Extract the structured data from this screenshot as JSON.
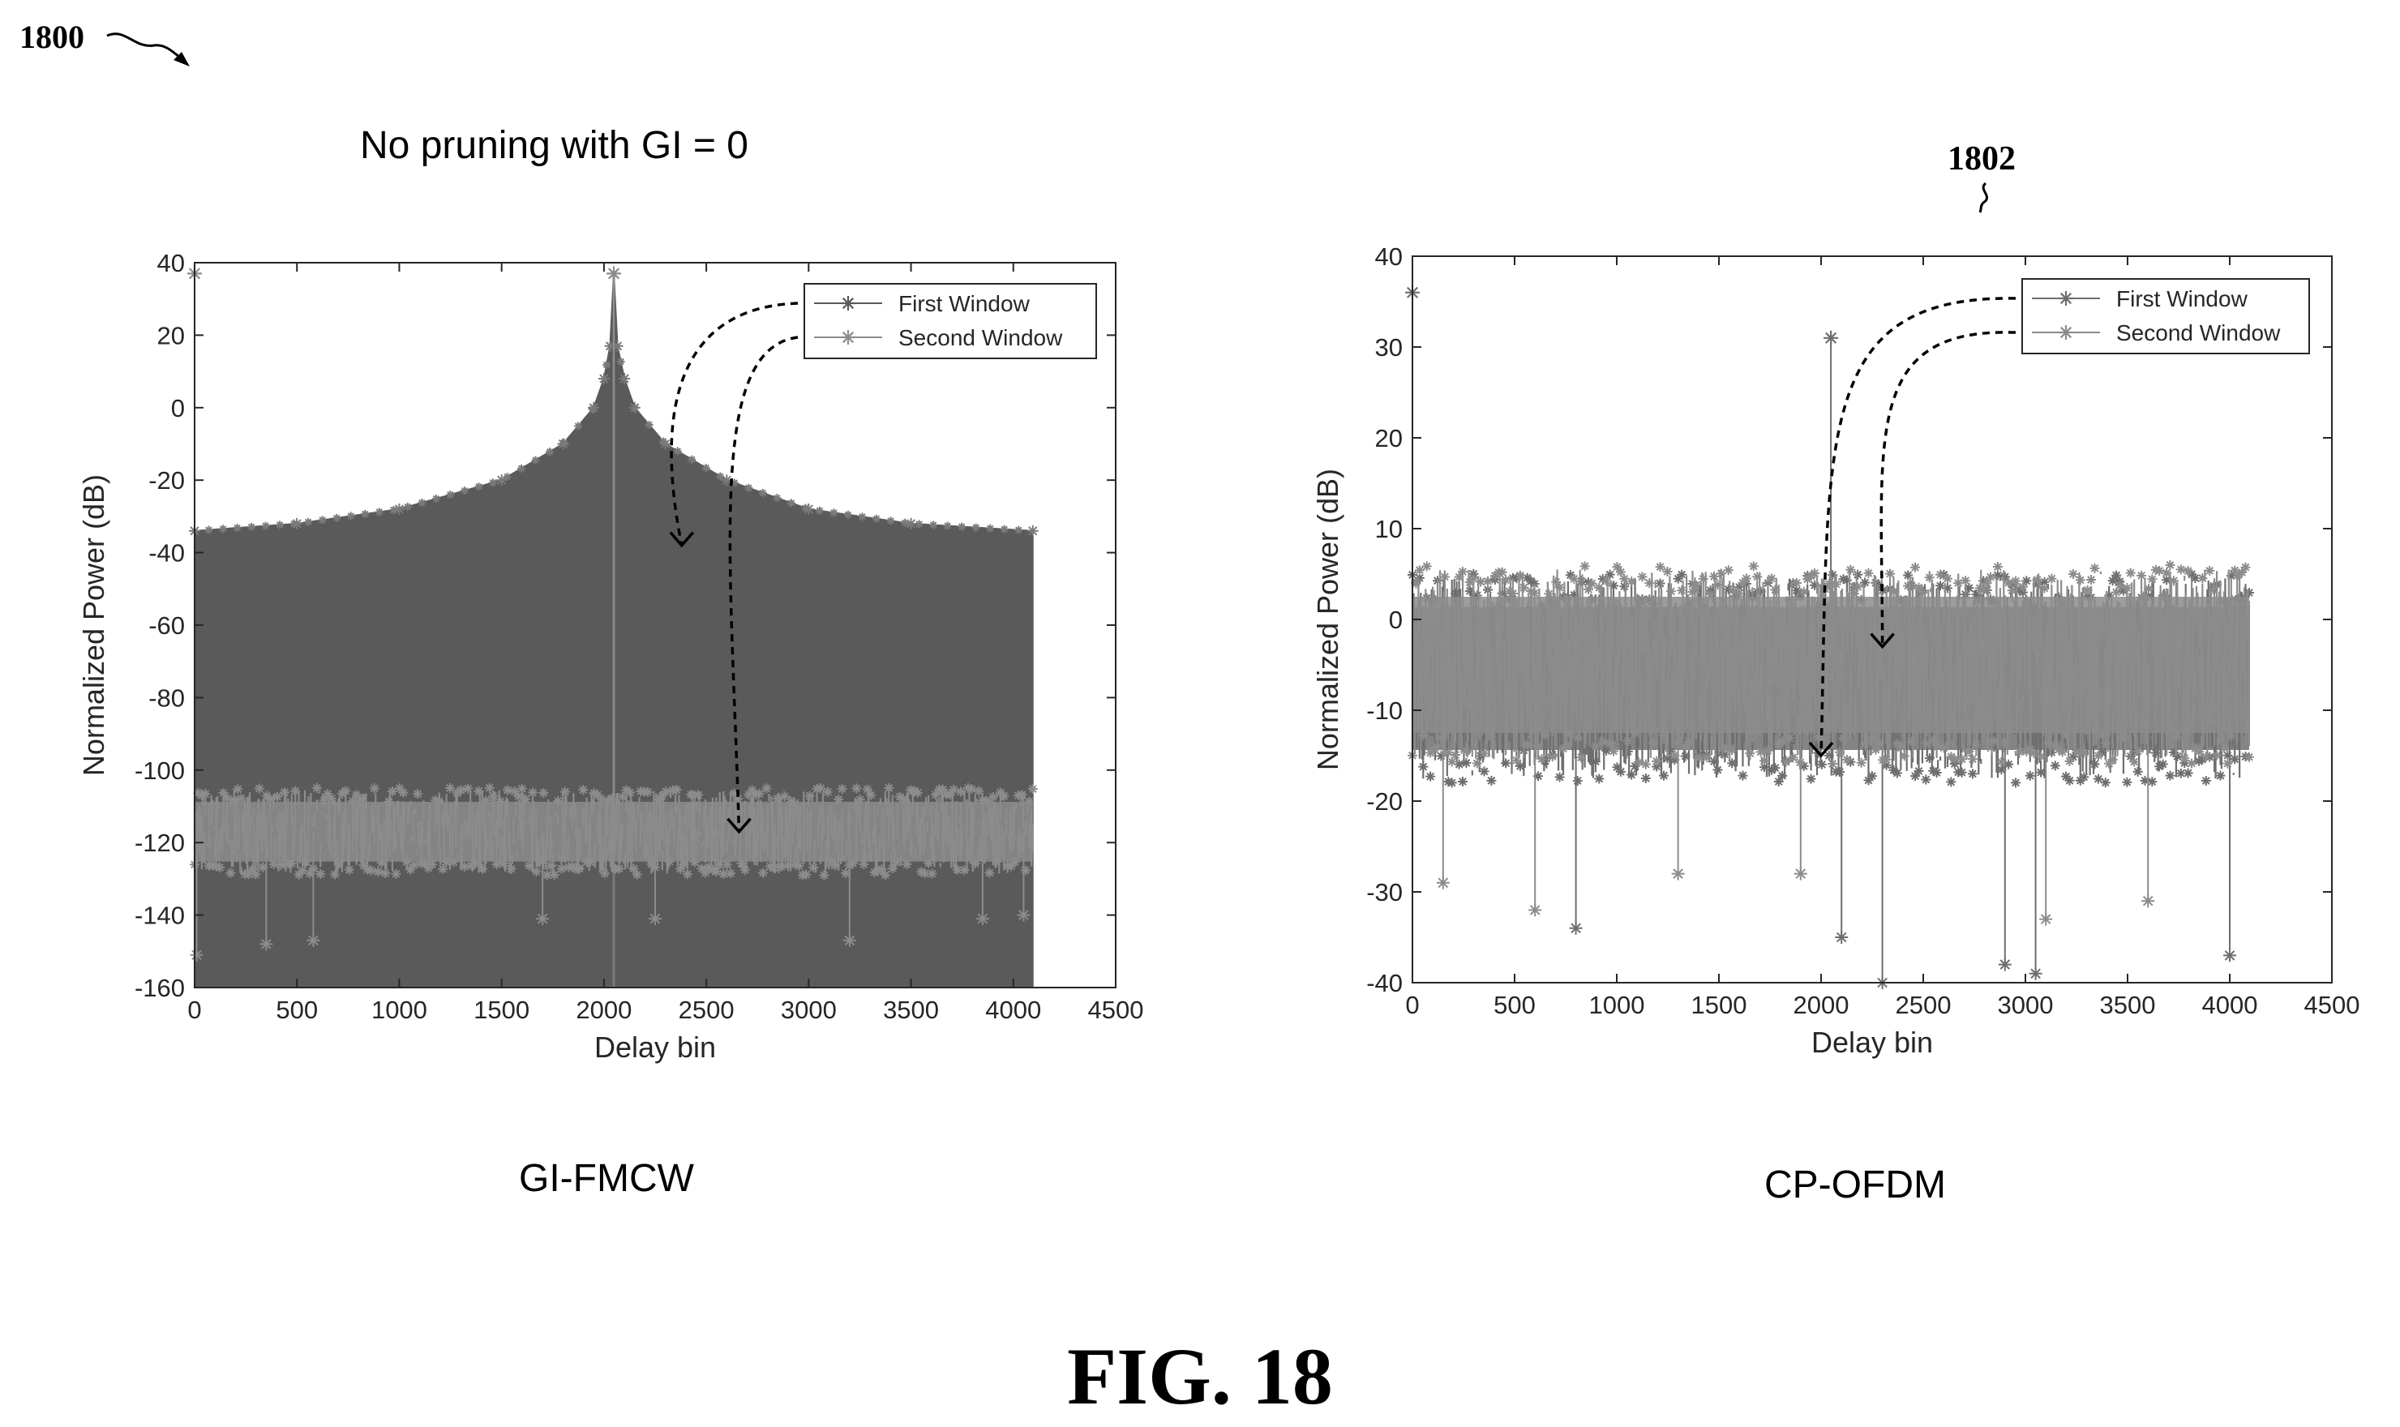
{
  "figure": {
    "ref_main": "1800",
    "ref_sub": "1802",
    "heading": "No pruning with GI = 0",
    "title": "FIG. 18"
  },
  "chart_data": [
    {
      "type": "line",
      "caption": "GI-FMCW",
      "xlabel": "Delay bin",
      "ylabel": "Normalized Power (dB)",
      "xlim": [
        0,
        4500
      ],
      "ylim": [
        -160,
        40
      ],
      "xticks": [
        0,
        500,
        1000,
        1500,
        2000,
        2500,
        3000,
        3500,
        4000,
        4500
      ],
      "yticks": [
        -160,
        -140,
        -120,
        -100,
        -80,
        -60,
        -40,
        -20,
        0,
        20,
        40
      ],
      "grid": false,
      "legend_position": "top-right",
      "annotation": "dashed arrows from legend entries to the series",
      "series": [
        {
          "name": "First Window",
          "color": "#5a5a5a",
          "marker": "*",
          "shape": "filled band from -160 floor up to envelope",
          "x": [
            0,
            500,
            1000,
            1500,
            1800,
            1950,
            2000,
            2030,
            2048,
            2066,
            2100,
            2150,
            2300,
            2600,
            3000,
            3500,
            4095
          ],
          "y_upper": [
            -34,
            -32,
            -28,
            -20,
            -10,
            0,
            8,
            17,
            37,
            17,
            8,
            0,
            -10,
            -20,
            -28,
            -32,
            -34
          ],
          "y_lower": -160
        },
        {
          "name": "Second Window",
          "color": "#8c8c8c",
          "marker": "*",
          "shape": "noise band",
          "x": [
            0,
            4095
          ],
          "band_upper": -106,
          "band_lower": -128,
          "dips": [
            [
              10,
              -151
            ],
            [
              350,
              -148
            ],
            [
              580,
              -147
            ],
            [
              1700,
              -141
            ],
            [
              2250,
              -141
            ],
            [
              3200,
              -147
            ],
            [
              3850,
              -141
            ],
            [
              4050,
              -140
            ]
          ],
          "peaks": [
            [
              0,
              37
            ],
            [
              2048,
              37
            ]
          ]
        }
      ]
    },
    {
      "type": "line",
      "caption": "CP-OFDM",
      "xlabel": "Delay bin",
      "ylabel": "Normalized Power (dB)",
      "xlim": [
        0,
        4500
      ],
      "ylim": [
        -40,
        40
      ],
      "xticks": [
        0,
        500,
        1000,
        1500,
        2000,
        2500,
        3000,
        3500,
        4000,
        4500
      ],
      "yticks": [
        -40,
        -30,
        -20,
        -10,
        0,
        10,
        20,
        30,
        40
      ],
      "grid": false,
      "legend_position": "top-right",
      "annotation": "dashed arrows from legend entries to the series",
      "series": [
        {
          "name": "First Window",
          "color": "#6e6e6e",
          "marker": "*",
          "shape": "noise band",
          "x": [
            0,
            4095
          ],
          "band_upper": 4,
          "band_lower": -17,
          "peaks": [
            [
              0,
              36
            ],
            [
              2048,
              31
            ]
          ],
          "dips": [
            [
              800,
              -34
            ],
            [
              2100,
              -35
            ],
            [
              2300,
              -40
            ],
            [
              2900,
              -38
            ],
            [
              3050,
              -39
            ],
            [
              4000,
              -37
            ]
          ]
        },
        {
          "name": "Second Window",
          "color": "#8c8c8c",
          "marker": "*",
          "shape": "noise band",
          "x": [
            0,
            4095
          ],
          "band_upper": 5,
          "band_lower": -15,
          "dips": [
            [
              150,
              -29
            ],
            [
              600,
              -32
            ],
            [
              1300,
              -28
            ],
            [
              1900,
              -28
            ],
            [
              3100,
              -33
            ],
            [
              3600,
              -31
            ]
          ]
        }
      ]
    }
  ]
}
